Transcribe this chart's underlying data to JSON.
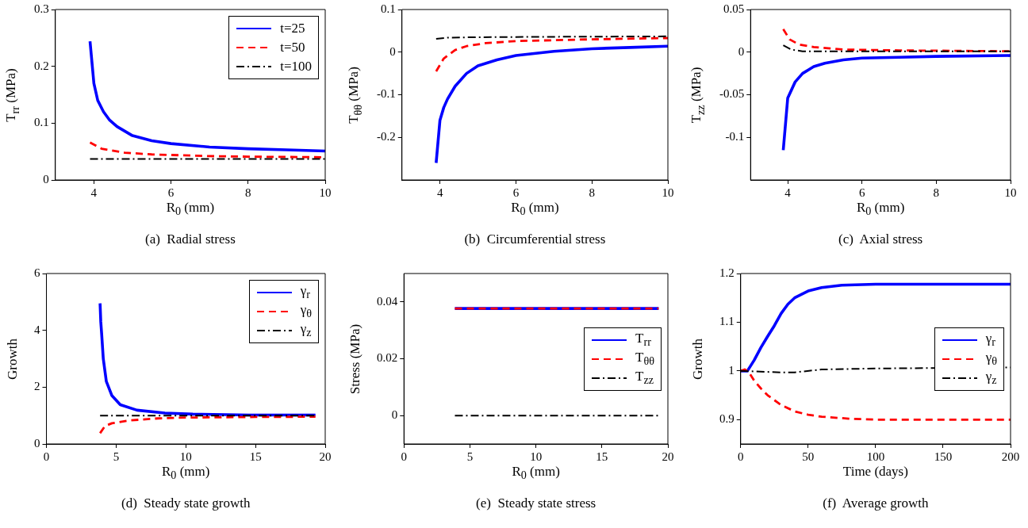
{
  "chart_data": [
    {
      "type": "line",
      "title": "(a)  Radial stress",
      "xlabel": "R$_{0}$ (mm)",
      "ylabel": "T$_{rr}$ (MPa)",
      "xlim": [
        3,
        10
      ],
      "xticks": [
        4,
        6,
        8,
        10
      ],
      "ylim": [
        0,
        0.3
      ],
      "yticks": [
        0,
        0.1,
        0.2,
        0.3
      ],
      "legend": "top right",
      "series": [
        {
          "name": "t=25",
          "color": "#0000ff",
          "line_style": "solid",
          "x": [
            3.9,
            4.0,
            4.1,
            4.25,
            4.4,
            4.6,
            5,
            5.5,
            6,
            7,
            8,
            9,
            10
          ],
          "values": [
            0.244,
            0.17,
            0.14,
            0.12,
            0.106,
            0.094,
            0.078,
            0.069,
            0.064,
            0.058,
            0.055,
            0.053,
            0.051
          ]
        },
        {
          "name": "t=50",
          "color": "#ff0000",
          "line_style": "dashed",
          "x": [
            3.9,
            4.2,
            4.8,
            5.5,
            6,
            7,
            8,
            10
          ],
          "values": [
            0.066,
            0.055,
            0.048,
            0.045,
            0.044,
            0.042,
            0.041,
            0.04
          ]
        },
        {
          "name": "t=100",
          "color": "#000000",
          "line_style": "dashdot",
          "x": [
            3.9,
            10
          ],
          "values": [
            0.037,
            0.037
          ]
        }
      ]
    },
    {
      "type": "line",
      "title": "(b)  Circumferential stress",
      "xlabel": "R$_{0}$ (mm)",
      "ylabel": "T$_{θθ}$ (MPa)",
      "xlim": [
        3,
        10
      ],
      "xticks": [
        4,
        6,
        8,
        10
      ],
      "ylim": [
        -0.3,
        0.1
      ],
      "yticks": [
        -0.2,
        -0.1,
        0,
        0.1
      ],
      "series": [
        {
          "color": "#0000ff",
          "line_style": "solid",
          "x": [
            3.9,
            4.0,
            4.1,
            4.2,
            4.4,
            4.7,
            5,
            5.5,
            6,
            7,
            8,
            9,
            10
          ],
          "values": [
            -0.26,
            -0.16,
            -0.13,
            -0.11,
            -0.08,
            -0.05,
            -0.032,
            -0.018,
            -0.008,
            0.002,
            0.008,
            0.011,
            0.014
          ]
        },
        {
          "color": "#ff0000",
          "line_style": "dashed",
          "x": [
            3.9,
            4.1,
            4.4,
            4.7,
            5.2,
            6,
            8,
            10
          ],
          "values": [
            -0.045,
            -0.015,
            0.005,
            0.014,
            0.021,
            0.026,
            0.03,
            0.033
          ]
        },
        {
          "color": "#000000",
          "line_style": "dashdot",
          "x": [
            3.9,
            4.2,
            5,
            7,
            10
          ],
          "values": [
            0.031,
            0.034,
            0.035,
            0.036,
            0.037
          ]
        }
      ]
    },
    {
      "type": "line",
      "title": "(c)  Axial stress",
      "xlabel": "R$_{0}$ (mm)",
      "ylabel": "T$_{zz}$ (MPa)",
      "xlim": [
        3,
        10
      ],
      "xticks": [
        4,
        6,
        8,
        10
      ],
      "ylim": [
        -0.15,
        0.05
      ],
      "yticks": [
        -0.1,
        -0.05,
        0,
        0.05
      ],
      "series": [
        {
          "color": "#0000ff",
          "line_style": "solid",
          "x": [
            3.88,
            4.0,
            4.2,
            4.4,
            4.7,
            5,
            5.5,
            6,
            7,
            8,
            10
          ],
          "values": [
            -0.115,
            -0.054,
            -0.035,
            -0.025,
            -0.017,
            -0.013,
            -0.009,
            -0.007,
            -0.006,
            -0.005,
            -0.004
          ]
        },
        {
          "color": "#ff0000",
          "line_style": "dashed",
          "x": [
            3.88,
            4.05,
            4.3,
            4.7,
            5.5,
            7,
            10
          ],
          "values": [
            0.027,
            0.015,
            0.009,
            0.006,
            0.003,
            0.002,
            0.001
          ]
        },
        {
          "color": "#000000",
          "line_style": "dashdot",
          "x": [
            3.88,
            4.1,
            4.4,
            5,
            10
          ],
          "values": [
            0.008,
            0.003,
            0.001,
            0.001,
            0.001
          ]
        }
      ]
    },
    {
      "type": "line",
      "title": "(d)  Steady state growth",
      "xlabel": "R$_{0}$ (mm)",
      "ylabel": "Growth",
      "xlim": [
        0,
        20
      ],
      "xticks": [
        0,
        5,
        10,
        15,
        20
      ],
      "ylim": [
        0,
        6
      ],
      "yticks": [
        0,
        2,
        4,
        6
      ],
      "legend": "top right",
      "series": [
        {
          "name": "γ$_{r}$",
          "color": "#0000ff",
          "line_style": "solid",
          "x": [
            3.85,
            3.9,
            3.96,
            4.08,
            4.3,
            4.7,
            5.3,
            6.5,
            8.5,
            10.5,
            14.5,
            19.3
          ],
          "values": [
            4.95,
            4.3,
            3.9,
            3.0,
            2.2,
            1.7,
            1.38,
            1.19,
            1.09,
            1.05,
            1.02,
            1.02
          ]
        },
        {
          "name": "γ$_{θ}$",
          "color": "#ff0000",
          "line_style": "dashed",
          "x": [
            3.85,
            4.2,
            4.7,
            6,
            8,
            10,
            15,
            19.3
          ],
          "values": [
            0.38,
            0.63,
            0.73,
            0.83,
            0.9,
            0.93,
            0.95,
            0.96
          ]
        },
        {
          "name": "γ$_{z}$",
          "color": "#000000",
          "line_style": "dashdot",
          "x": [
            3.85,
            19.3
          ],
          "values": [
            1.0,
            1.0
          ]
        }
      ]
    },
    {
      "type": "line",
      "title": "(e)  Steady state stress",
      "xlabel": "R$_{0}$ (mm)",
      "ylabel": "Stress (MPa)",
      "xlim": [
        0,
        20
      ],
      "xticks": [
        0,
        5,
        10,
        15,
        20
      ],
      "ylim": [
        -0.01,
        0.05
      ],
      "yticks": [
        0,
        0.02,
        0.04
      ],
      "legend": "right",
      "series": [
        {
          "name": "T$_{rr}$",
          "color": "#0000ff",
          "line_style": "solid",
          "x": [
            3.86,
            19.3
          ],
          "values": [
            0.0377,
            0.0377
          ]
        },
        {
          "name": "T$_{θθ}$",
          "color": "#ff0000",
          "line_style": "dashed",
          "x": [
            3.86,
            19.3
          ],
          "values": [
            0.0377,
            0.0377
          ]
        },
        {
          "name": "T$_{zz}$",
          "color": "#000000",
          "line_style": "dashdot",
          "x": [
            3.86,
            19.3
          ],
          "values": [
            0,
            0
          ]
        }
      ]
    },
    {
      "type": "line",
      "title": "(f)  Average growth",
      "xlabel": "Time (days)",
      "ylabel": "Growth",
      "xlim": [
        0,
        200
      ],
      "xticks": [
        0,
        50,
        100,
        150,
        200
      ],
      "ylim": [
        0.85,
        1.2
      ],
      "yticks": [
        0.9,
        1,
        1.1,
        1.2
      ],
      "legend": "right",
      "series": [
        {
          "name": "γ$_{r}$",
          "color": "#0000ff",
          "line_style": "solid",
          "x": [
            0,
            5,
            10,
            15,
            20,
            25,
            30,
            35,
            40,
            50,
            60,
            75,
            100,
            200
          ],
          "values": [
            1.0,
            1.0,
            1.022,
            1.048,
            1.071,
            1.093,
            1.118,
            1.137,
            1.15,
            1.164,
            1.171,
            1.176,
            1.178,
            1.178
          ]
        },
        {
          "name": "γ$_{θ}$",
          "color": "#ff0000",
          "line_style": "dashed",
          "x": [
            0,
            3,
            6,
            10,
            15,
            20,
            30,
            40,
            50,
            60,
            80,
            100,
            200
          ],
          "values": [
            1.0,
            1.003,
            0.998,
            0.98,
            0.964,
            0.95,
            0.93,
            0.917,
            0.91,
            0.906,
            0.902,
            0.9,
            0.9
          ]
        },
        {
          "name": "γ$_{z}$",
          "color": "#000000",
          "line_style": "dashdot",
          "x": [
            0,
            20,
            30,
            40,
            60,
            100,
            200
          ],
          "values": [
            1.0,
            0.998,
            0.997,
            0.997,
            1.003,
            1.005,
            1.007
          ]
        }
      ]
    }
  ]
}
